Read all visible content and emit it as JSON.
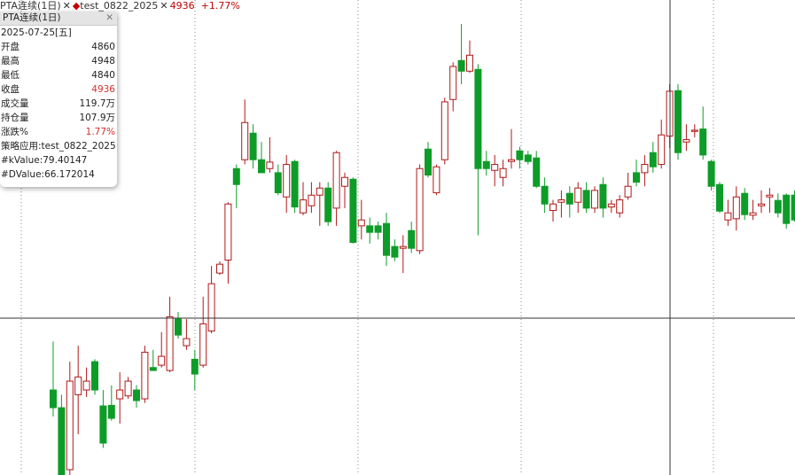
{
  "header": {
    "symbol": "PTA连续(1日)",
    "strategy": "test_0822_2025",
    "price": "4936",
    "change": "+1.77%"
  },
  "panel": {
    "title": "PTA连续(1日)",
    "date": "2025-07-25[五]",
    "rows": [
      [
        "开盘",
        "4860"
      ],
      [
        "最高",
        "4948"
      ],
      [
        "最低",
        "4840"
      ],
      [
        "收盘",
        "4936"
      ],
      [
        "成交量",
        "119.7万"
      ],
      [
        "持仓量",
        "107.9万"
      ],
      [
        "涨跌%",
        "1.77%"
      ]
    ],
    "strategy": "策略应用:test_0822_2025",
    "kvalue": "#kValue:79.40147",
    "dvalue": "#DValue:66.172014"
  },
  "chart_data": {
    "type": "candlestick",
    "up_color": "#b01818",
    "down_color": "#0e9c28",
    "open": [
      4430,
      4400,
      4295,
      4422,
      4430,
      4478,
      4403,
      4404,
      4415,
      4420,
      4430,
      4415,
      4468,
      4472,
      4463,
      4550,
      4505,
      4482,
      4472,
      4530,
      4628,
      4650,
      4805,
      4820,
      4865,
      4820,
      4805,
      4798,
      4757,
      4817,
      4730,
      4742,
      4760,
      4772,
      4738,
      4775,
      4787,
      4708,
      4708,
      4708,
      4712,
      4673,
      4670,
      4700,
      4666,
      4838,
      4764,
      4820,
      4922,
      4988,
      4970,
      4973,
      4817,
      4802,
      4790,
      4817,
      4835,
      4828,
      4823,
      4775,
      4734,
      4748,
      4763,
      4748,
      4768,
      4738,
      4778,
      4740,
      4730,
      4757,
      4798,
      4798,
      4832,
      4812,
      4860,
      4937,
      4850,
      4868,
      4872,
      4817,
      4778,
      4718,
      4720,
      4763,
      4726,
      4742,
      4757,
      4751,
      4760,
      4760
    ],
    "high": [
      4512,
      4422,
      4478,
      4505,
      4468,
      4482,
      4430,
      4438,
      4460,
      4452,
      4438,
      4505,
      4498,
      4528,
      4588,
      4562,
      4550,
      4498,
      4588,
      4640,
      4648,
      4748,
      4812,
      4922,
      4880,
      4850,
      4858,
      4812,
      4828,
      4820,
      4782,
      4782,
      4782,
      4782,
      4835,
      4798,
      4790,
      4752,
      4722,
      4715,
      4730,
      4685,
      4692,
      4715,
      4812,
      4850,
      4812,
      4925,
      4985,
      5050,
      5022,
      4982,
      4835,
      4828,
      4820,
      4872,
      4842,
      4835,
      4835,
      4790,
      4752,
      4768,
      4775,
      4782,
      4782,
      4775,
      4790,
      4752,
      4760,
      4798,
      4820,
      4828,
      4850,
      4888,
      4948,
      4948,
      4880,
      4880,
      4910,
      4820,
      4782,
      4752,
      4775,
      4772,
      4752,
      4768,
      4772,
      4763,
      4763,
      4768
    ],
    "low": [
      4385,
      4286,
      4286,
      4355,
      4418,
      4422,
      4332,
      4378,
      4373,
      4415,
      4400,
      4408,
      4463,
      4468,
      4460,
      4517,
      4498,
      4430,
      4468,
      4526,
      4625,
      4610,
      4738,
      4812,
      4805,
      4798,
      4798,
      4760,
      4730,
      4730,
      4726,
      4730,
      4708,
      4708,
      4708,
      4738,
      4678,
      4685,
      4678,
      4685,
      4640,
      4648,
      4628,
      4662,
      4660,
      4790,
      4760,
      4812,
      4902,
      4948,
      4967,
      4692,
      4793,
      4775,
      4775,
      4805,
      4805,
      4812,
      4772,
      4730,
      4715,
      4722,
      4722,
      4730,
      4730,
      4730,
      4722,
      4730,
      4722,
      4752,
      4775,
      4775,
      4798,
      4805,
      4840,
      4820,
      4835,
      4858,
      4820,
      4768,
      4730,
      4708,
      4700,
      4718,
      4718,
      4730,
      4730,
      4722,
      4703,
      4715
    ],
    "close": [
      4400,
      4286,
      4445,
      4452,
      4445,
      4430,
      4340,
      4382,
      4430,
      4445,
      4412,
      4494,
      4463,
      4487,
      4554,
      4523,
      4517,
      4457,
      4542,
      4610,
      4643,
      4745,
      4778,
      4883,
      4820,
      4798,
      4816,
      4764,
      4812,
      4740,
      4752,
      4760,
      4772,
      4715,
      4832,
      4790,
      4680,
      4718,
      4697,
      4697,
      4658,
      4655,
      4673,
      4670,
      4805,
      4794,
      4808,
      4918,
      4978,
      4970,
      4997,
      4805,
      4805,
      4812,
      4805,
      4820,
      4820,
      4817,
      4775,
      4745,
      4745,
      4752,
      4745,
      4772,
      4738,
      4768,
      4738,
      4745,
      4752,
      4775,
      4782,
      4812,
      4808,
      4862,
      4936,
      4832,
      4854,
      4870,
      4828,
      4775,
      4733,
      4730,
      4757,
      4727,
      4730,
      4745,
      4760,
      4730,
      4712,
      4718
    ]
  }
}
